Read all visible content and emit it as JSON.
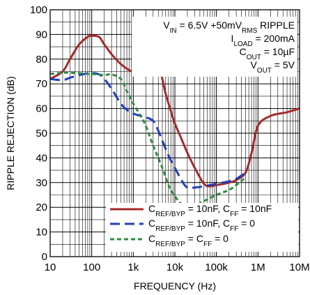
{
  "chart_data": {
    "type": "line",
    "xlabel": "FREQUENCY (Hz)",
    "ylabel": "RIPPLE REJECTION (dB)",
    "xscale": "log",
    "xlim": [
      10,
      10000000
    ],
    "ylim": [
      0,
      100
    ],
    "grid": true,
    "legend_position": "bottom-right",
    "x_ticks": [
      {
        "value": 10,
        "label": "10"
      },
      {
        "value": 100,
        "label": "100"
      },
      {
        "value": 1000,
        "label": "1k"
      },
      {
        "value": 10000,
        "label": "10k"
      },
      {
        "value": 100000,
        "label": "100k"
      },
      {
        "value": 1000000,
        "label": "1M"
      },
      {
        "value": 10000000,
        "label": "10M"
      }
    ],
    "y_ticks": [
      {
        "value": 0,
        "label": "0"
      },
      {
        "value": 10,
        "label": "10"
      },
      {
        "value": 20,
        "label": "20"
      },
      {
        "value": 30,
        "label": "30"
      },
      {
        "value": 40,
        "label": "40"
      },
      {
        "value": 50,
        "label": "50"
      },
      {
        "value": 60,
        "label": "60"
      },
      {
        "value": 70,
        "label": "70"
      },
      {
        "value": 80,
        "label": "80"
      },
      {
        "value": 90,
        "label": "90"
      },
      {
        "value": 100,
        "label": "100"
      }
    ],
    "annotations": [
      {
        "parts": [
          [
            "V",
            ""
          ],
          [
            "IN",
            "sub"
          ],
          [
            " = 6.5V +50mV",
            ""
          ],
          [
            "RMS",
            "sub"
          ],
          [
            " RIPPLE",
            ""
          ]
        ]
      },
      {
        "parts": [
          [
            "I",
            ""
          ],
          [
            "LOAD",
            "sub"
          ],
          [
            " = 200mA",
            ""
          ]
        ]
      },
      {
        "parts": [
          [
            "C",
            ""
          ],
          [
            "OUT",
            "sub"
          ],
          [
            " = 10µF",
            ""
          ]
        ]
      },
      {
        "parts": [
          [
            "V",
            ""
          ],
          [
            "OUT",
            "sub"
          ],
          [
            " = 5V",
            ""
          ]
        ]
      }
    ],
    "series": [
      {
        "name": "CREF/BYP = 10nF, CFF = 10nF",
        "label_parts": [
          [
            "C",
            ""
          ],
          [
            "REF/BYP",
            "sub"
          ],
          [
            " = 10nF, C",
            ""
          ],
          [
            "FF",
            "sub"
          ],
          [
            " = 10nF",
            ""
          ]
        ],
        "color": "#a52a2a",
        "dash": "solid",
        "x": [
          10,
          20,
          30,
          50,
          80,
          100,
          150,
          200,
          300,
          500,
          800,
          1000,
          1500,
          2000,
          3000,
          4000,
          5000,
          6000,
          8000,
          10000,
          15000,
          20000,
          30000,
          50000,
          70000,
          100000,
          150000,
          200000,
          300000,
          500000,
          700000,
          1000000,
          2000000,
          5000000,
          10000000
        ],
        "y": [
          72,
          75,
          80,
          86,
          89,
          89.5,
          89,
          86,
          82,
          78,
          75.5,
          75,
          75.5,
          77,
          80,
          79,
          72,
          66,
          59,
          54,
          47,
          42,
          36,
          29.5,
          28.5,
          29,
          29.5,
          30,
          31,
          34,
          42,
          53,
          57,
          58.5,
          60
        ]
      },
      {
        "name": "CREF/BYP = 10nF, CFF = 0",
        "label_parts": [
          [
            "C",
            ""
          ],
          [
            "REF/BYP",
            "sub"
          ],
          [
            " = 10nF, C",
            ""
          ],
          [
            "FF",
            "sub"
          ],
          [
            " = 0",
            ""
          ]
        ],
        "color": "#1f3fbf",
        "dash": "long-dash",
        "x": [
          10,
          20,
          30,
          50,
          80,
          100,
          150,
          200,
          300,
          500,
          700,
          1000,
          1500,
          2000,
          3000,
          4000,
          5000,
          7000,
          10000,
          15000,
          20000,
          30000,
          50000,
          100000,
          200000,
          300000,
          500000
        ],
        "y": [
          72,
          71.5,
          72.5,
          73.5,
          74.3,
          74.5,
          73.8,
          72,
          68,
          62,
          59.5,
          58,
          57,
          56.5,
          55,
          51,
          47,
          41,
          36,
          30.5,
          28,
          28,
          28.5,
          29.5,
          30.5,
          31.5,
          34
        ]
      },
      {
        "name": "CREF/BYP = CFF = 0",
        "label_parts": [
          [
            "C",
            ""
          ],
          [
            "REF/BYP",
            "sub"
          ],
          [
            " = C",
            ""
          ],
          [
            "FF",
            "sub"
          ],
          [
            " = 0",
            ""
          ]
        ],
        "color": "#2e8b3e",
        "dash": "short-dash",
        "x": [
          10,
          20,
          30,
          50,
          80,
          100,
          150,
          200,
          300,
          500,
          700,
          1000,
          1500,
          2000,
          3000,
          5000,
          7000,
          10000,
          15000,
          20000,
          30000,
          50000,
          100000,
          200000,
          300000,
          500000
        ],
        "y": [
          74,
          74.5,
          74.5,
          74.3,
          74,
          74,
          73.8,
          73.5,
          73.8,
          72,
          67,
          62,
          57,
          53,
          45,
          36,
          29,
          24.5,
          21,
          20,
          20.5,
          22.5,
          25,
          27,
          29,
          32
        ]
      }
    ]
  }
}
